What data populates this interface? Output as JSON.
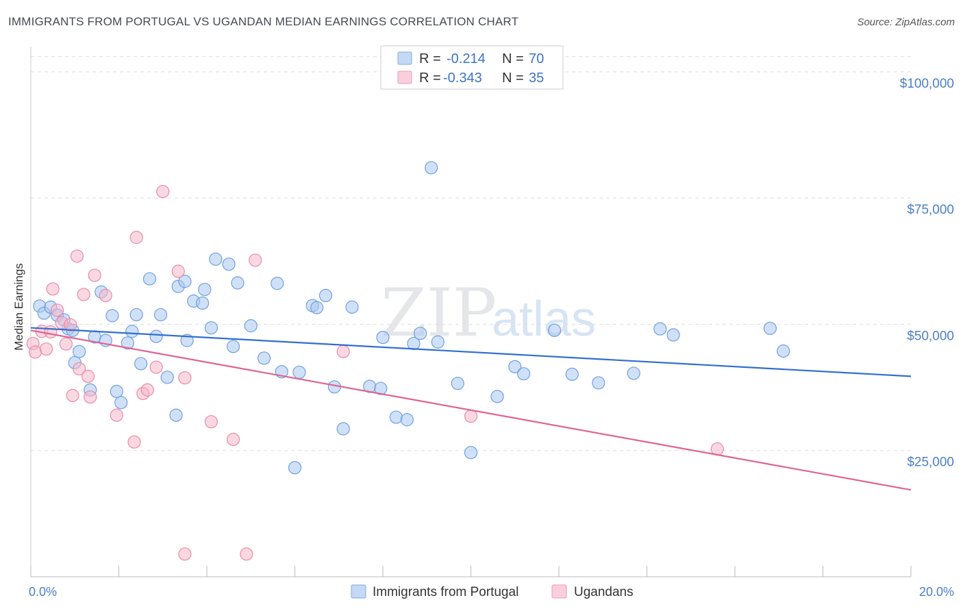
{
  "header": {
    "title": "IMMIGRANTS FROM PORTUGAL VS UGANDAN MEDIAN EARNINGS CORRELATION CHART",
    "source": "Source: ZipAtlas.com"
  },
  "watermark": {
    "zip": "ZIP",
    "atlas": "atlas"
  },
  "legend_top": [
    {
      "r_label": "R =",
      "r_value": "-0.214",
      "n_label": "N =",
      "n_value": "70",
      "color": "#a9c8f0"
    },
    {
      "r_label": "R =",
      "r_value": "-0.343",
      "n_label": "N =",
      "n_value": "35",
      "color": "#f6b8cb"
    }
  ],
  "legend_bottom": [
    {
      "name": "Immigrants from Portugal",
      "color": "#a9c8f0"
    },
    {
      "name": "Ugandans",
      "color": "#f6b8cb"
    }
  ],
  "colors": {
    "blue_fill": "#a9c8f0",
    "blue_stroke": "#6f9fe0",
    "blue_line": "#2f6fce",
    "pink_fill": "#f6b8cb",
    "pink_stroke": "#e88aa8",
    "pink_line": "#e0628f",
    "grid": "#dddddd",
    "axis_text": "#4a7fc9"
  },
  "chart_data": {
    "type": "scatter",
    "title": "IMMIGRANTS FROM PORTUGAL VS UGANDAN MEDIAN EARNINGS CORRELATION CHART",
    "xlabel": "",
    "ylabel": "Median Earnings",
    "xlim": [
      0,
      20
    ],
    "ylim": [
      0,
      105000
    ],
    "x_tick_labels": [
      "0.0%",
      "20.0%"
    ],
    "y_ticks": [
      25000,
      50000,
      75000,
      100000
    ],
    "y_tick_labels": [
      "$25,000",
      "$50,000",
      "$75,000",
      "$100,000"
    ],
    "grid": true,
    "legend_placement": "top-center",
    "series": [
      {
        "name": "Immigrants from Portugal",
        "trend": {
          "x": [
            0,
            20
          ],
          "y": [
            49300,
            39700
          ]
        },
        "points": [
          [
            0.2,
            53600
          ],
          [
            0.3,
            52200
          ],
          [
            0.45,
            53400
          ],
          [
            0.6,
            51800
          ],
          [
            0.75,
            50900
          ],
          [
            0.85,
            49100
          ],
          [
            0.95,
            48800
          ],
          [
            1.1,
            44600
          ],
          [
            1.0,
            42400
          ],
          [
            1.35,
            37000
          ],
          [
            1.45,
            47500
          ],
          [
            1.6,
            56400
          ],
          [
            1.7,
            46800
          ],
          [
            1.85,
            51700
          ],
          [
            1.95,
            36700
          ],
          [
            2.05,
            34500
          ],
          [
            2.2,
            46300
          ],
          [
            2.3,
            48600
          ],
          [
            2.4,
            51900
          ],
          [
            2.5,
            42200
          ],
          [
            2.7,
            59000
          ],
          [
            2.85,
            47600
          ],
          [
            2.95,
            51900
          ],
          [
            3.1,
            39500
          ],
          [
            3.3,
            32000
          ],
          [
            3.35,
            57500
          ],
          [
            3.5,
            58500
          ],
          [
            3.55,
            46800
          ],
          [
            3.7,
            54600
          ],
          [
            3.9,
            54200
          ],
          [
            3.95,
            56900
          ],
          [
            4.1,
            49300
          ],
          [
            4.2,
            62900
          ],
          [
            4.5,
            61900
          ],
          [
            4.6,
            45600
          ],
          [
            4.7,
            58200
          ],
          [
            5.0,
            49700
          ],
          [
            5.3,
            43300
          ],
          [
            5.6,
            58100
          ],
          [
            5.7,
            40600
          ],
          [
            6.0,
            21600
          ],
          [
            6.1,
            40500
          ],
          [
            6.4,
            53700
          ],
          [
            6.5,
            53300
          ],
          [
            6.7,
            55700
          ],
          [
            6.9,
            37600
          ],
          [
            7.1,
            29300
          ],
          [
            7.3,
            53400
          ],
          [
            7.7,
            37700
          ],
          [
            7.95,
            37300
          ],
          [
            8.0,
            47400
          ],
          [
            8.3,
            31600
          ],
          [
            8.55,
            31100
          ],
          [
            8.7,
            46200
          ],
          [
            8.85,
            48200
          ],
          [
            9.1,
            81000
          ],
          [
            9.25,
            46500
          ],
          [
            9.7,
            38300
          ],
          [
            10.0,
            24600
          ],
          [
            10.6,
            35700
          ],
          [
            11.0,
            41600
          ],
          [
            11.2,
            40200
          ],
          [
            11.9,
            48800
          ],
          [
            12.3,
            40100
          ],
          [
            12.9,
            38400
          ],
          [
            13.7,
            40300
          ],
          [
            14.3,
            49100
          ],
          [
            14.6,
            47900
          ],
          [
            16.8,
            49200
          ],
          [
            17.1,
            44700
          ]
        ]
      },
      {
        "name": "Ugandans",
        "trend": {
          "x": [
            0,
            20
          ],
          "y": [
            48800,
            17200
          ]
        },
        "points": [
          [
            0.05,
            46200
          ],
          [
            0.1,
            44500
          ],
          [
            0.25,
            48600
          ],
          [
            0.35,
            45100
          ],
          [
            0.45,
            48500
          ],
          [
            0.5,
            57000
          ],
          [
            0.6,
            52800
          ],
          [
            0.7,
            50300
          ],
          [
            0.8,
            46100
          ],
          [
            0.9,
            49900
          ],
          [
            0.95,
            35900
          ],
          [
            1.05,
            63500
          ],
          [
            1.1,
            41200
          ],
          [
            1.2,
            55900
          ],
          [
            1.3,
            39700
          ],
          [
            1.35,
            35600
          ],
          [
            1.45,
            59700
          ],
          [
            1.7,
            55700
          ],
          [
            1.95,
            32000
          ],
          [
            2.35,
            26700
          ],
          [
            2.4,
            67200
          ],
          [
            2.55,
            36300
          ],
          [
            2.65,
            37000
          ],
          [
            2.85,
            41500
          ],
          [
            3.0,
            76300
          ],
          [
            3.35,
            60500
          ],
          [
            3.5,
            39400
          ],
          [
            4.1,
            30700
          ],
          [
            4.6,
            27200
          ],
          [
            4.9,
            4500
          ],
          [
            5.1,
            62700
          ],
          [
            7.1,
            44600
          ],
          [
            10.0,
            31800
          ],
          [
            15.6,
            25300
          ],
          [
            3.5,
            4500
          ]
        ]
      }
    ]
  }
}
